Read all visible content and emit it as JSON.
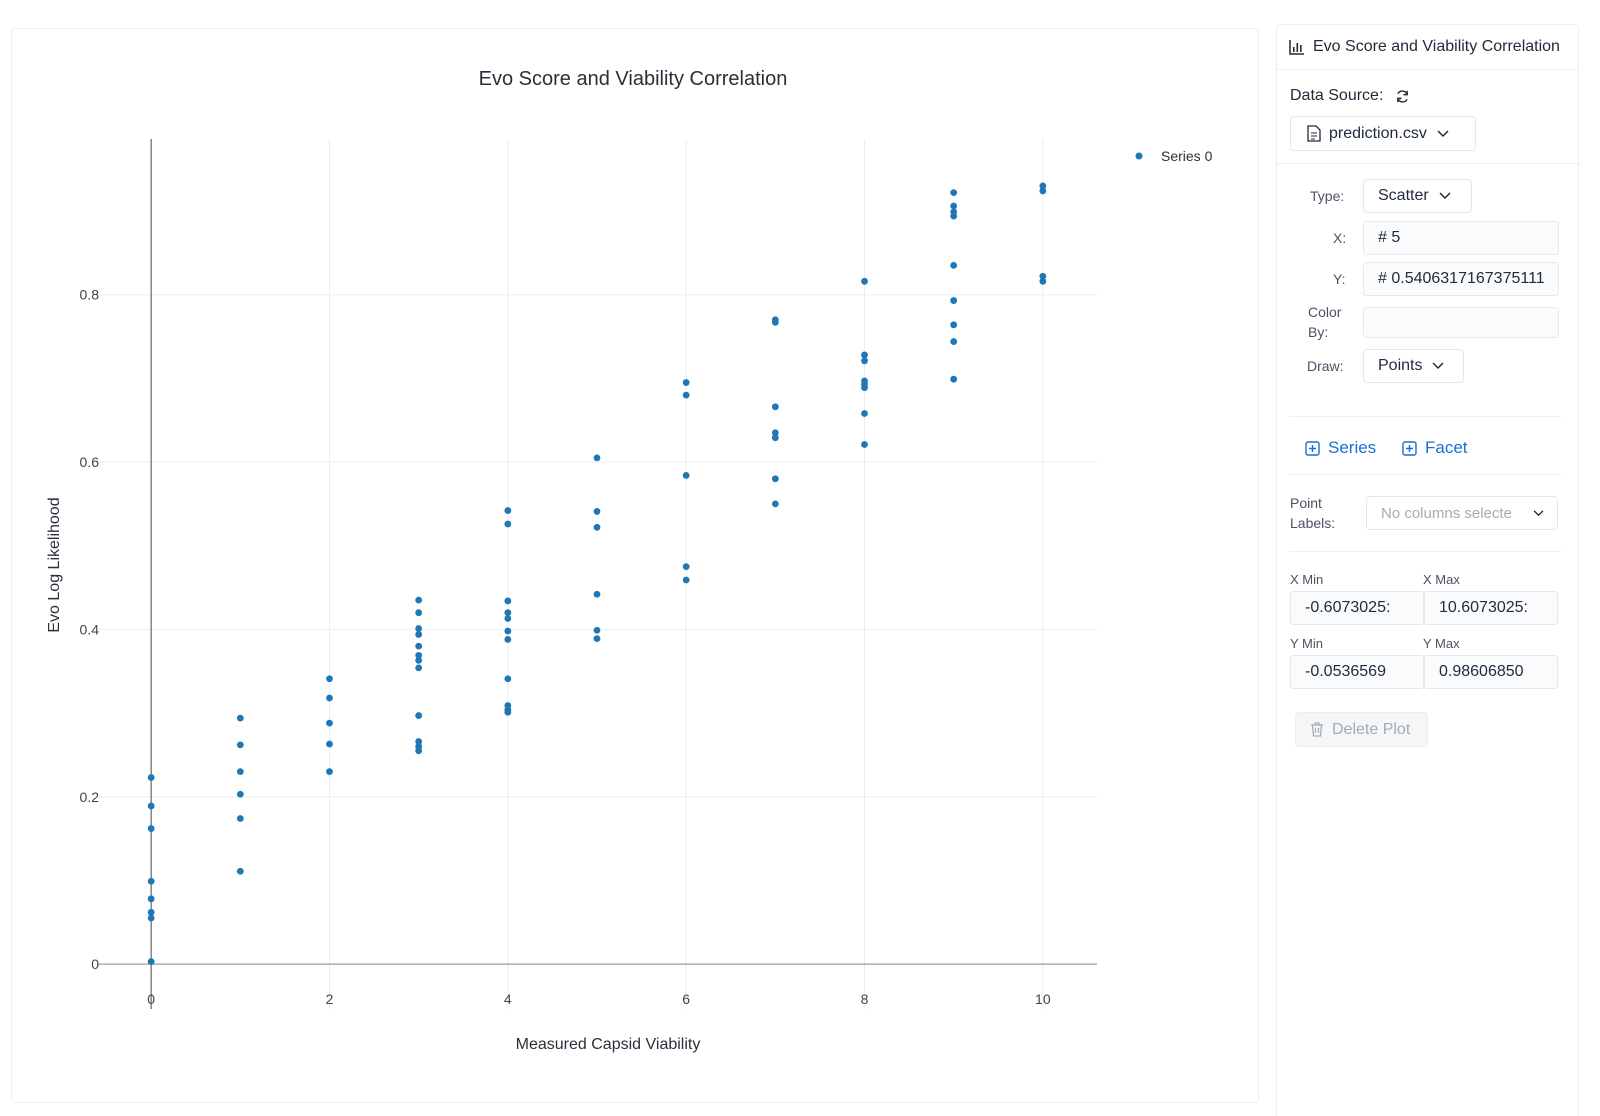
{
  "chart_data": {
    "type": "scatter",
    "title": "Evo Score and Viability Correlation",
    "xlabel": "Measured Capsid Viability",
    "ylabel": "Evo Log Likelihood",
    "xlim": [
      -0.6073025,
      10.6073025
    ],
    "ylim": [
      -0.0536569,
      0.9860685
    ],
    "xticks": [
      0,
      2,
      4,
      6,
      8,
      10
    ],
    "xtick_labels": [
      "0",
      "2",
      "4",
      "6",
      "8",
      "10"
    ],
    "yticks": [
      0,
      0.2,
      0.4,
      0.6,
      0.8
    ],
    "ytick_labels": [
      "0",
      "0.2",
      "0.4",
      "0.6",
      "0.8"
    ],
    "grid": true,
    "legend_position": "top-right",
    "series": [
      {
        "name": "Series 0",
        "color": "#1f77b4",
        "points": [
          [
            0,
            0.223
          ],
          [
            0,
            0.189
          ],
          [
            0,
            0.162
          ],
          [
            0,
            0.099
          ],
          [
            0,
            0.078
          ],
          [
            0,
            0.062
          ],
          [
            0,
            0.055
          ],
          [
            0,
            0.003
          ],
          [
            1,
            0.294
          ],
          [
            1,
            0.262
          ],
          [
            1,
            0.23
          ],
          [
            1,
            0.203
          ],
          [
            1,
            0.174
          ],
          [
            1,
            0.111
          ],
          [
            2,
            0.341
          ],
          [
            2,
            0.318
          ],
          [
            2,
            0.288
          ],
          [
            2,
            0.263
          ],
          [
            2,
            0.23
          ],
          [
            3,
            0.435
          ],
          [
            3,
            0.42
          ],
          [
            3,
            0.401
          ],
          [
            3,
            0.394
          ],
          [
            3,
            0.38
          ],
          [
            3,
            0.369
          ],
          [
            3,
            0.363
          ],
          [
            3,
            0.354
          ],
          [
            3,
            0.297
          ],
          [
            3,
            0.266
          ],
          [
            3,
            0.26
          ],
          [
            3,
            0.255
          ],
          [
            4,
            0.542
          ],
          [
            4,
            0.526
          ],
          [
            4,
            0.434
          ],
          [
            4,
            0.42
          ],
          [
            4,
            0.413
          ],
          [
            4,
            0.398
          ],
          [
            4,
            0.388
          ],
          [
            4,
            0.341
          ],
          [
            4,
            0.309
          ],
          [
            4,
            0.304
          ],
          [
            4,
            0.301
          ],
          [
            5,
            0.605
          ],
          [
            5,
            0.541
          ],
          [
            5,
            0.522
          ],
          [
            5,
            0.442
          ],
          [
            5,
            0.399
          ],
          [
            5,
            0.389
          ],
          [
            6,
            0.695
          ],
          [
            6,
            0.68
          ],
          [
            6,
            0.584
          ],
          [
            6,
            0.475
          ],
          [
            6,
            0.459
          ],
          [
            7,
            0.77
          ],
          [
            7,
            0.767
          ],
          [
            7,
            0.666
          ],
          [
            7,
            0.635
          ],
          [
            7,
            0.629
          ],
          [
            7,
            0.58
          ],
          [
            7,
            0.55
          ],
          [
            8,
            0.816
          ],
          [
            8,
            0.728
          ],
          [
            8,
            0.721
          ],
          [
            8,
            0.697
          ],
          [
            8,
            0.693
          ],
          [
            8,
            0.689
          ],
          [
            8,
            0.658
          ],
          [
            8,
            0.621
          ],
          [
            9,
            0.922
          ],
          [
            9,
            0.906
          ],
          [
            9,
            0.899
          ],
          [
            9,
            0.894
          ],
          [
            9,
            0.835
          ],
          [
            9,
            0.793
          ],
          [
            9,
            0.764
          ],
          [
            9,
            0.744
          ],
          [
            9,
            0.699
          ],
          [
            10,
            0.93
          ],
          [
            10,
            0.924
          ],
          [
            10,
            0.822
          ],
          [
            10,
            0.816
          ]
        ]
      }
    ]
  },
  "panel": {
    "title": "Evo Score and Viability Correlation",
    "data_source_label": "Data Source:",
    "file_name": "prediction.csv",
    "type_label": "Type:",
    "type_value": "Scatter",
    "x_label": "X:",
    "x_value": "# 5",
    "y_label": "Y:",
    "y_value": "# 0.5406317167375111",
    "color_by_label_1": "Color",
    "color_by_label_2": "By:",
    "color_by_value": "",
    "draw_label": "Draw:",
    "draw_value": "Points",
    "series_btn": "Series",
    "facet_btn": "Facet",
    "point_labels_label_1": "Point",
    "point_labels_label_2": "Labels:",
    "point_labels_placeholder": "No columns selecte",
    "x_min_label": "X Min",
    "x_min_value": "-0.6073025:",
    "x_max_label": "X Max",
    "x_max_value": "10.6073025:",
    "y_min_label": "Y Min",
    "y_min_value": "-0.0536569",
    "y_max_label": "Y Max",
    "y_max_value": "0.98606850",
    "delete_btn": "Delete Plot"
  }
}
